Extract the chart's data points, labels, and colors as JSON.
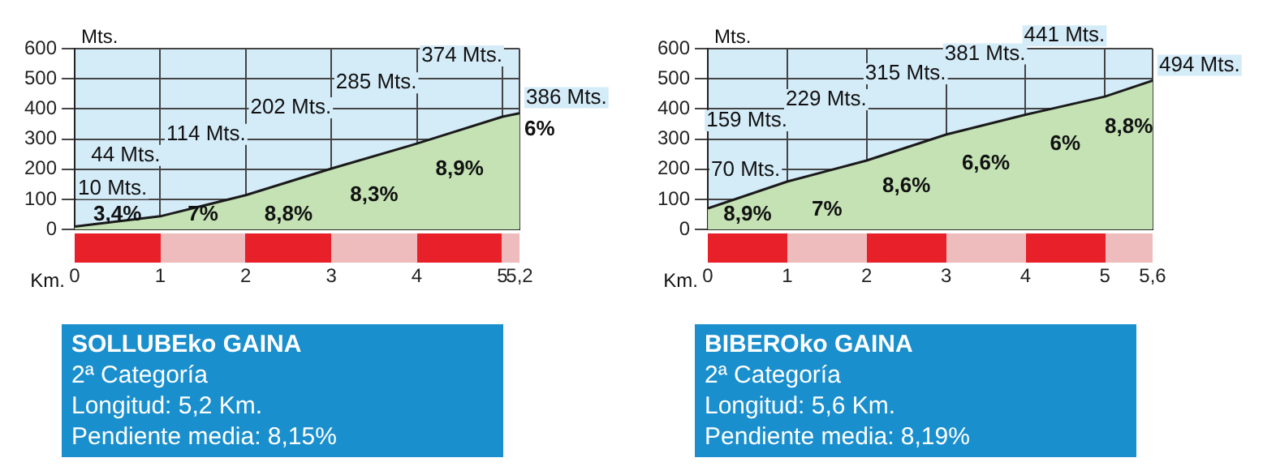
{
  "chart_data": [
    {
      "type": "area",
      "title": "SOLLUBEko GAINA",
      "xlabel": "Km.",
      "ylabel": "Mts.",
      "color": "#c4e2b4",
      "marker": "none",
      "grid": true,
      "x": [
        0,
        1,
        2,
        3,
        4,
        5,
        5.2
      ],
      "values": [
        10,
        44,
        114,
        202,
        285,
        374,
        386
      ],
      "value_labels": [
        "10 Mts.",
        "44 Mts.",
        "114 Mts.",
        "202 Mts.",
        "285 Mts.",
        "374 Mts.",
        "386 Mts."
      ],
      "xlim": [
        0,
        5.2
      ],
      "xticks": [
        0,
        1,
        2,
        3,
        4,
        5,
        {
          "value": 5.2,
          "label": "5,2"
        }
      ],
      "ylim": [
        0,
        600
      ],
      "yticks": [
        0,
        100,
        200,
        300,
        400,
        500,
        600
      ],
      "annotations": [
        "2ª Categoría",
        "Longitud:  5,2 Km.",
        "Pendiente media:  8,15%",
        {
          "text": "3,4%",
          "x": 0.5,
          "y": 27
        },
        {
          "text": "7%",
          "x": 1.5,
          "y": 79
        },
        {
          "text": "8,8%",
          "x": 2.5,
          "y": 158
        },
        {
          "text": "8,3%",
          "x": 3.5,
          "y": 244
        },
        {
          "text": "8,9%",
          "x": 4.5,
          "y": 330
        },
        {
          "text": "6%",
          "x": 5.2,
          "y": 386
        }
      ]
    },
    {
      "type": "area",
      "title": "BIBEROko GAINA",
      "xlabel": "Km.",
      "ylabel": "Mts.",
      "color": "#c4e2b4",
      "marker": "none",
      "grid": true,
      "x": [
        0,
        1,
        2,
        3,
        4,
        5,
        5.6
      ],
      "values": [
        70,
        159,
        229,
        315,
        381,
        441,
        494
      ],
      "value_labels": [
        "70 Mts.",
        "159 Mts.",
        "229 Mts.",
        "315 Mts.",
        "381 Mts.",
        "441 Mts.",
        "494 Mts."
      ],
      "xlim": [
        0,
        5.6
      ],
      "xticks": [
        0,
        1,
        2,
        3,
        4,
        5,
        {
          "value": 5.6,
          "label": "5,6"
        }
      ],
      "ylim": [
        0,
        600
      ],
      "yticks": [
        0,
        100,
        200,
        300,
        400,
        500,
        600
      ],
      "annotations": [
        "2ª Categoría",
        "Longitud:  5,6 Km.",
        "Pendiente media:  8,19%",
        {
          "text": "8,9%",
          "x": 0.5,
          "y": 115
        },
        {
          "text": "7%",
          "x": 1.5,
          "y": 194
        },
        {
          "text": "8,6%",
          "x": 2.5,
          "y": 272
        },
        {
          "text": "6,6%",
          "x": 3.5,
          "y": 348
        },
        {
          "text": "6%",
          "x": 4.5,
          "y": 411
        },
        {
          "text": "8,8%",
          "x": 5.3,
          "y": 468
        }
      ]
    }
  ]
}
